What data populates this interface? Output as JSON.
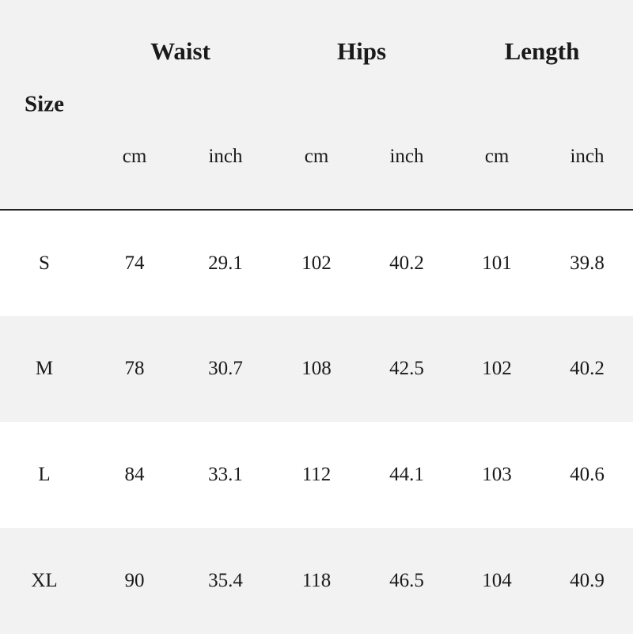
{
  "header": {
    "size_label": "Size",
    "groups": [
      "Waist",
      "Hips",
      "Length"
    ],
    "units": [
      "cm",
      "inch",
      "cm",
      "inch",
      "cm",
      "inch"
    ]
  },
  "rows": [
    {
      "size": "S",
      "values": [
        "74",
        "29.1",
        "102",
        "40.2",
        "101",
        "39.8"
      ]
    },
    {
      "size": "M",
      "values": [
        "78",
        "30.7",
        "108",
        "42.5",
        "102",
        "40.2"
      ]
    },
    {
      "size": "L",
      "values": [
        "84",
        "33.1",
        "112",
        "44.1",
        "103",
        "40.6"
      ]
    },
    {
      "size": "XL",
      "values": [
        "90",
        "35.4",
        "118",
        "46.5",
        "104",
        "40.9"
      ]
    }
  ],
  "colors": {
    "header_bg": "#f2f2f2",
    "row_alt_bg": "#f2f2f2",
    "row_bg": "#ffffff",
    "divider": "#222222"
  }
}
